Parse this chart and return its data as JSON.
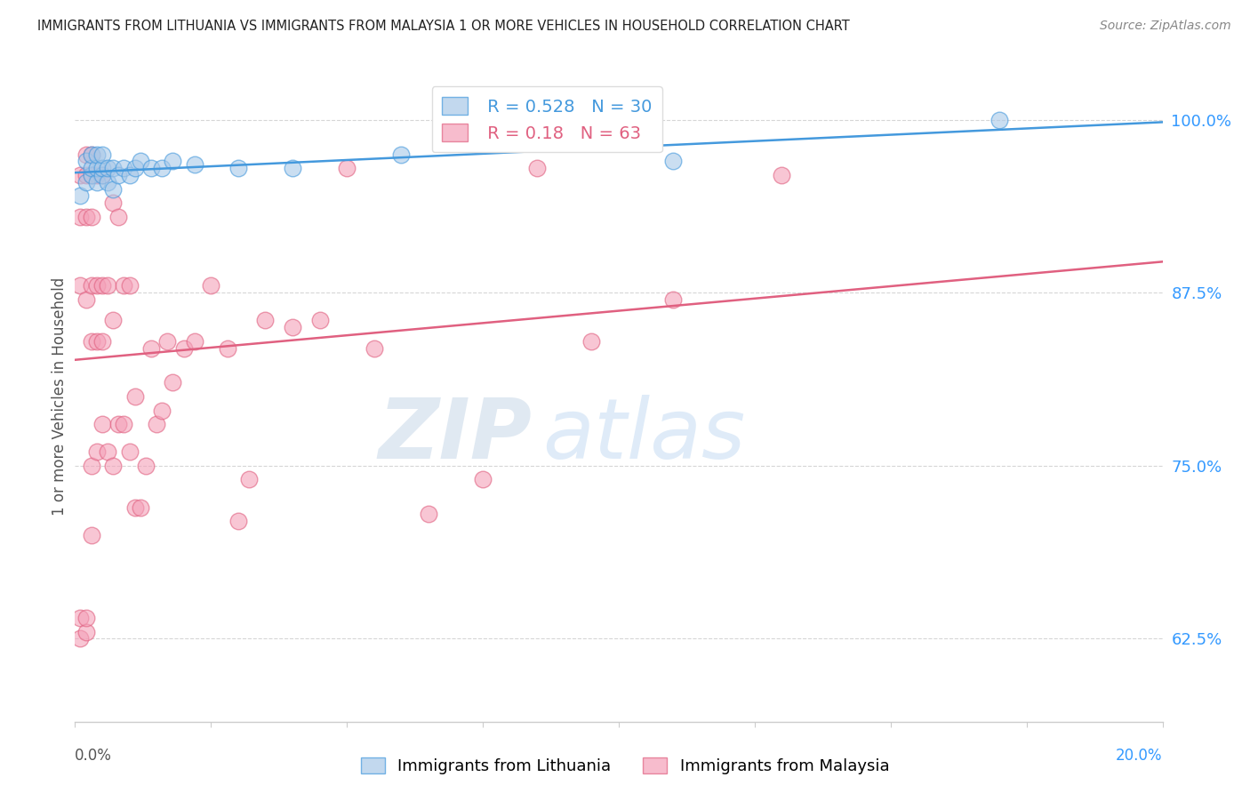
{
  "title": "IMMIGRANTS FROM LITHUANIA VS IMMIGRANTS FROM MALAYSIA 1 OR MORE VEHICLES IN HOUSEHOLD CORRELATION CHART",
  "source": "Source: ZipAtlas.com",
  "ylabel": "1 or more Vehicles in Household",
  "ytick_labels": [
    "62.5%",
    "75.0%",
    "87.5%",
    "100.0%"
  ],
  "ytick_values": [
    0.625,
    0.75,
    0.875,
    1.0
  ],
  "xlim": [
    0.0,
    0.2
  ],
  "ylim": [
    0.565,
    1.035
  ],
  "legend_label1": "Immigrants from Lithuania",
  "legend_label2": "Immigrants from Malaysia",
  "r1": 0.528,
  "n1": 30,
  "r2": 0.18,
  "n2": 63,
  "blue_color": "#a8c8e8",
  "pink_color": "#f4a0b8",
  "blue_line_color": "#4499dd",
  "pink_line_color": "#e06080",
  "lithuania_x": [
    0.001,
    0.002,
    0.002,
    0.003,
    0.003,
    0.003,
    0.004,
    0.004,
    0.004,
    0.005,
    0.005,
    0.005,
    0.006,
    0.006,
    0.007,
    0.007,
    0.008,
    0.009,
    0.01,
    0.011,
    0.012,
    0.014,
    0.016,
    0.018,
    0.022,
    0.03,
    0.04,
    0.06,
    0.11,
    0.17
  ],
  "lithuania_y": [
    0.945,
    0.955,
    0.97,
    0.96,
    0.965,
    0.975,
    0.955,
    0.965,
    0.975,
    0.96,
    0.965,
    0.975,
    0.955,
    0.965,
    0.95,
    0.965,
    0.96,
    0.965,
    0.96,
    0.965,
    0.97,
    0.965,
    0.965,
    0.97,
    0.968,
    0.965,
    0.965,
    0.975,
    0.97,
    1.0
  ],
  "malaysia_x": [
    0.001,
    0.001,
    0.001,
    0.001,
    0.001,
    0.002,
    0.002,
    0.002,
    0.002,
    0.002,
    0.002,
    0.003,
    0.003,
    0.003,
    0.003,
    0.003,
    0.003,
    0.003,
    0.004,
    0.004,
    0.004,
    0.004,
    0.005,
    0.005,
    0.005,
    0.005,
    0.006,
    0.006,
    0.007,
    0.007,
    0.007,
    0.008,
    0.008,
    0.009,
    0.009,
    0.01,
    0.01,
    0.011,
    0.011,
    0.012,
    0.013,
    0.014,
    0.015,
    0.016,
    0.017,
    0.018,
    0.02,
    0.022,
    0.025,
    0.028,
    0.03,
    0.032,
    0.035,
    0.04,
    0.045,
    0.05,
    0.055,
    0.065,
    0.075,
    0.085,
    0.095,
    0.11,
    0.13
  ],
  "malaysia_y": [
    0.625,
    0.64,
    0.88,
    0.93,
    0.96,
    0.63,
    0.64,
    0.87,
    0.93,
    0.96,
    0.975,
    0.7,
    0.75,
    0.84,
    0.88,
    0.93,
    0.96,
    0.975,
    0.76,
    0.84,
    0.88,
    0.96,
    0.78,
    0.84,
    0.88,
    0.96,
    0.76,
    0.88,
    0.75,
    0.855,
    0.94,
    0.78,
    0.93,
    0.78,
    0.88,
    0.76,
    0.88,
    0.72,
    0.8,
    0.72,
    0.75,
    0.835,
    0.78,
    0.79,
    0.84,
    0.81,
    0.835,
    0.84,
    0.88,
    0.835,
    0.71,
    0.74,
    0.855,
    0.85,
    0.855,
    0.965,
    0.835,
    0.715,
    0.74,
    0.965,
    0.84,
    0.87,
    0.96
  ],
  "watermark_zip": "ZIP",
  "watermark_atlas": "atlas",
  "background_color": "#ffffff"
}
